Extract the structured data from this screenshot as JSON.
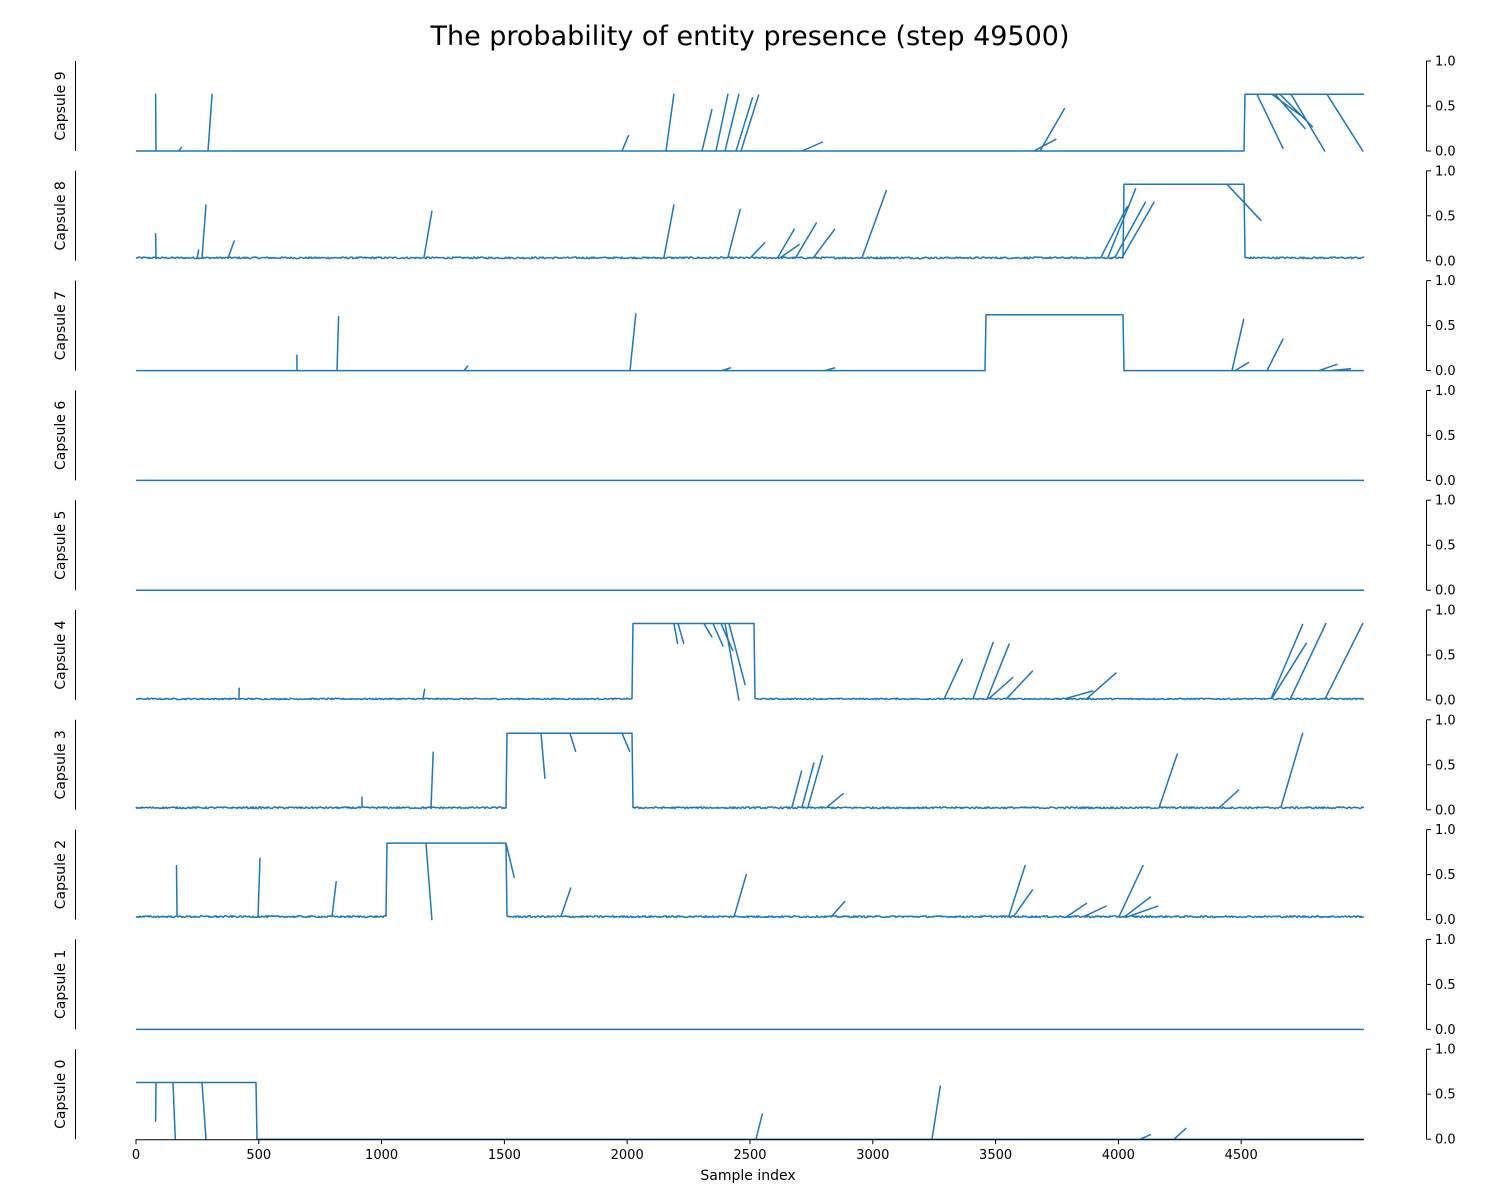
{
  "chart_data": {
    "type": "line",
    "title": "The probability of entity presence (step 49500)",
    "xlabel": "Sample index",
    "x_ticks": [
      0,
      500,
      1000,
      1500,
      2000,
      2500,
      3000,
      3500,
      4000,
      4500
    ],
    "xlim": [
      0,
      5000
    ],
    "ylim": [
      0,
      1
    ],
    "y_ticks": [
      "0.0",
      "0.5",
      "1.0"
    ],
    "color": "#1f77b4",
    "grid": false,
    "legend": "none",
    "panels": [
      {
        "name": "Capsule 9",
        "baseline": 0.0,
        "noise": 0.0,
        "plateaus": [
          {
            "start": 4515,
            "end": 5000,
            "level": 0.63
          }
        ],
        "spikes": [
          [
            80,
            0.63
          ],
          [
            185,
            0.04
          ],
          [
            310,
            0.63
          ],
          [
            2005,
            0.17
          ],
          [
            2190,
            0.63
          ],
          [
            2345,
            0.46
          ],
          [
            2410,
            0.63
          ],
          [
            2455,
            0.63
          ],
          [
            2510,
            0.59
          ],
          [
            2535,
            0.62
          ],
          [
            2795,
            0.1
          ],
          [
            3745,
            0.13
          ],
          [
            3780,
            0.47
          ],
          [
            4670,
            0.03
          ],
          [
            4740,
            0.4
          ],
          [
            4760,
            0.25
          ],
          [
            4790,
            0.27
          ],
          [
            4840,
            0.0
          ],
          [
            4995,
            0.0
          ]
        ]
      },
      {
        "name": "Capsule 8",
        "baseline": 0.03,
        "noise": 0.02,
        "plateaus": [
          {
            "start": 4020,
            "end": 4515,
            "level": 0.85
          }
        ],
        "spikes": [
          [
            80,
            0.3
          ],
          [
            255,
            0.12
          ],
          [
            285,
            0.62
          ],
          [
            400,
            0.22
          ],
          [
            1205,
            0.55
          ],
          [
            2190,
            0.62
          ],
          [
            2460,
            0.57
          ],
          [
            2560,
            0.2
          ],
          [
            2680,
            0.35
          ],
          [
            2700,
            0.18
          ],
          [
            2770,
            0.42
          ],
          [
            2845,
            0.35
          ],
          [
            3055,
            0.78
          ],
          [
            4035,
            0.6
          ],
          [
            4070,
            0.8
          ],
          [
            4110,
            0.65
          ],
          [
            4145,
            0.65
          ],
          [
            4580,
            0.45
          ]
        ]
      },
      {
        "name": "Capsule 7",
        "baseline": 0.0,
        "noise": 0.0,
        "plateaus": [
          {
            "start": 3460,
            "end": 4020,
            "level": 0.62
          }
        ],
        "spikes": [
          [
            655,
            0.17
          ],
          [
            825,
            0.6
          ],
          [
            1350,
            0.05
          ],
          [
            2035,
            0.63
          ],
          [
            2420,
            0.03
          ],
          [
            2845,
            0.03
          ],
          [
            4510,
            0.57
          ],
          [
            4530,
            0.09
          ],
          [
            4670,
            0.35
          ],
          [
            4890,
            0.07
          ],
          [
            4945,
            0.02
          ]
        ]
      },
      {
        "name": "Capsule 6",
        "baseline": 0.0,
        "noise": 0.0,
        "plateaus": [],
        "spikes": []
      },
      {
        "name": "Capsule 5",
        "baseline": 0.0,
        "noise": 0.0,
        "plateaus": [],
        "spikes": []
      },
      {
        "name": "Capsule 4",
        "baseline": 0.01,
        "noise": 0.015,
        "plateaus": [
          {
            "start": 2020,
            "end": 2520,
            "level": 0.85
          }
        ],
        "spikes": [
          [
            420,
            0.13
          ],
          [
            1175,
            0.12
          ],
          [
            2205,
            0.63
          ],
          [
            2230,
            0.63
          ],
          [
            2345,
            0.7
          ],
          [
            2390,
            0.6
          ],
          [
            2430,
            0.55
          ],
          [
            2455,
            0.0
          ],
          [
            2480,
            0.17
          ],
          [
            3365,
            0.45
          ],
          [
            3490,
            0.64
          ],
          [
            3555,
            0.62
          ],
          [
            3570,
            0.25
          ],
          [
            3650,
            0.32
          ],
          [
            3895,
            0.1
          ],
          [
            3990,
            0.3
          ],
          [
            4750,
            0.84
          ],
          [
            4765,
            0.63
          ],
          [
            4845,
            0.85
          ],
          [
            4995,
            0.85
          ]
        ]
      },
      {
        "name": "Capsule 3",
        "baseline": 0.02,
        "noise": 0.02,
        "plateaus": [
          {
            "start": 1510,
            "end": 2020,
            "level": 0.85
          }
        ],
        "spikes": [
          [
            920,
            0.14
          ],
          [
            1210,
            0.64
          ],
          [
            1665,
            0.35
          ],
          [
            1790,
            0.65
          ],
          [
            2010,
            0.65
          ],
          [
            2710,
            0.43
          ],
          [
            2760,
            0.52
          ],
          [
            2795,
            0.6
          ],
          [
            2880,
            0.18
          ],
          [
            4240,
            0.62
          ],
          [
            4490,
            0.22
          ],
          [
            4750,
            0.85
          ]
        ]
      },
      {
        "name": "Capsule 2",
        "baseline": 0.03,
        "noise": 0.02,
        "plateaus": [
          {
            "start": 1020,
            "end": 1510,
            "level": 0.85
          }
        ],
        "spikes": [
          [
            165,
            0.6
          ],
          [
            505,
            0.68
          ],
          [
            815,
            0.42
          ],
          [
            1205,
            0.0
          ],
          [
            1540,
            0.47
          ],
          [
            1770,
            0.35
          ],
          [
            2485,
            0.5
          ],
          [
            2885,
            0.2
          ],
          [
            3620,
            0.6
          ],
          [
            3650,
            0.33
          ],
          [
            3870,
            0.18
          ],
          [
            3950,
            0.15
          ],
          [
            4100,
            0.6
          ],
          [
            4130,
            0.25
          ],
          [
            4160,
            0.15
          ]
        ]
      },
      {
        "name": "Capsule 1",
        "baseline": 0.0,
        "noise": 0.0,
        "plateaus": [],
        "spikes": []
      },
      {
        "name": "Capsule 0",
        "baseline": 0.0,
        "noise": 0.0,
        "plateaus": [
          {
            "start": 0,
            "end": 490,
            "level": 0.63
          }
        ],
        "spikes": [
          [
            80,
            0.2
          ],
          [
            160,
            0.0
          ],
          [
            285,
            0.0
          ],
          [
            2550,
            0.28
          ],
          [
            3275,
            0.59
          ],
          [
            4130,
            0.05
          ],
          [
            4275,
            0.12
          ]
        ]
      }
    ]
  }
}
